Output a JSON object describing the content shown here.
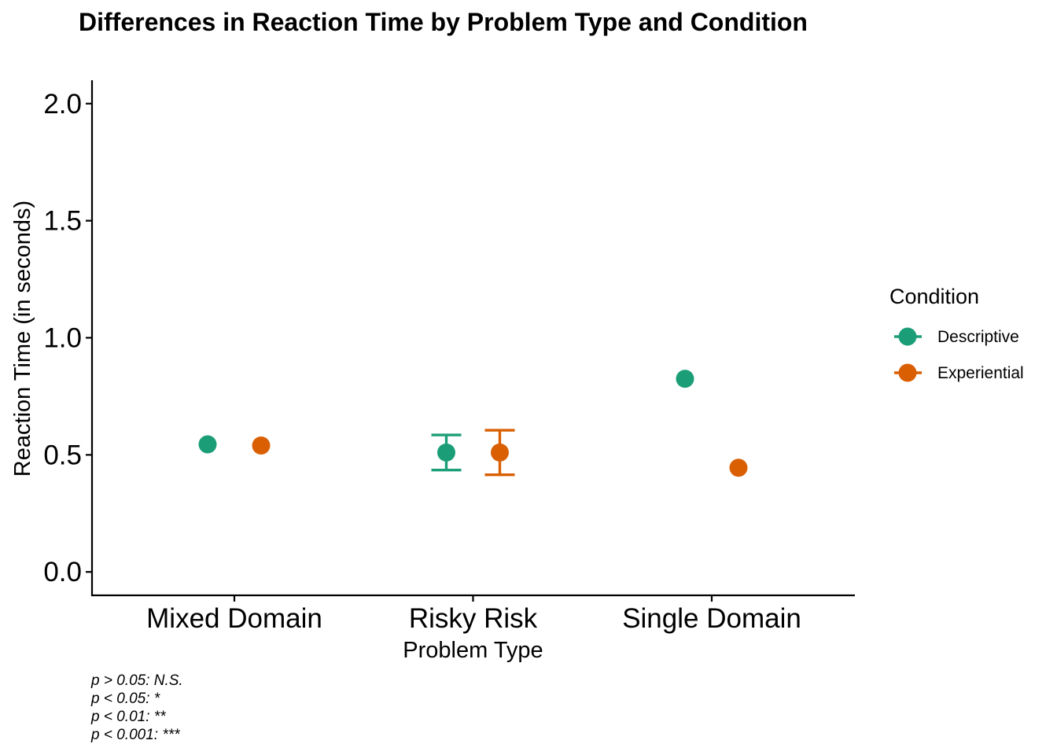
{
  "chart_data": {
    "type": "scatter",
    "title": "Differences in Reaction Time by Problem Type and Condition",
    "xlabel": "Problem Type",
    "ylabel": "Reaction Time (in seconds)",
    "categories": [
      "Mixed Domain",
      "Risky Risk",
      "Single Domain"
    ],
    "ylim": [
      -0.1,
      2.1
    ],
    "yticks": [
      0.0,
      0.5,
      1.0,
      1.5,
      2.0
    ],
    "ytick_labels": [
      "0.0",
      "0.5",
      "1.0",
      "1.5",
      "2.0"
    ],
    "grid": false,
    "legend": {
      "title": "Condition",
      "placement": "right"
    },
    "series": [
      {
        "name": "Descriptive",
        "color": "#1b9e77",
        "values": [
          0.545,
          0.51,
          0.825
        ],
        "error_low": [
          null,
          0.435,
          null
        ],
        "error_high": [
          null,
          0.585,
          null
        ]
      },
      {
        "name": "Experiential",
        "color": "#d95f02",
        "values": [
          0.54,
          0.51,
          0.445
        ],
        "error_low": [
          null,
          0.415,
          null
        ],
        "error_high": [
          null,
          0.605,
          null
        ]
      }
    ],
    "caption": [
      "p > 0.05: N.S.",
      "p < 0.05: *",
      "p < 0.01: **",
      "p < 0.001: ***"
    ]
  }
}
